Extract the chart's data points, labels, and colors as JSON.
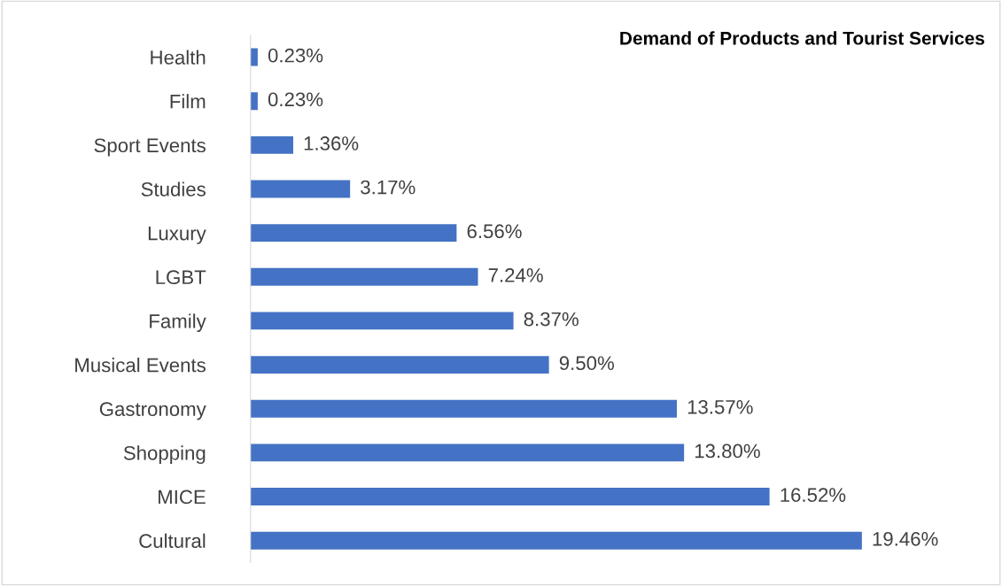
{
  "chart_data": {
    "type": "bar",
    "orientation": "horizontal",
    "title": "Demand of Products and Tourist Services",
    "categories": [
      "Health",
      "Film",
      "Sport Events",
      "Studies",
      "Luxury",
      "LGBT",
      "Family",
      "Musical Events",
      "Gastronomy",
      "Shopping",
      "MICE",
      "Cultural"
    ],
    "values": [
      0.23,
      0.23,
      1.36,
      3.17,
      6.56,
      7.24,
      8.37,
      9.5,
      13.57,
      13.8,
      16.52,
      19.46
    ],
    "value_labels": [
      "0.23%",
      "0.23%",
      "1.36%",
      "3.17%",
      "6.56%",
      "7.24%",
      "8.37%",
      "9.50%",
      "13.57%",
      "13.80%",
      "16.52%",
      "19.46%"
    ],
    "color": "#4472c4",
    "grid": false,
    "legend": false
  }
}
